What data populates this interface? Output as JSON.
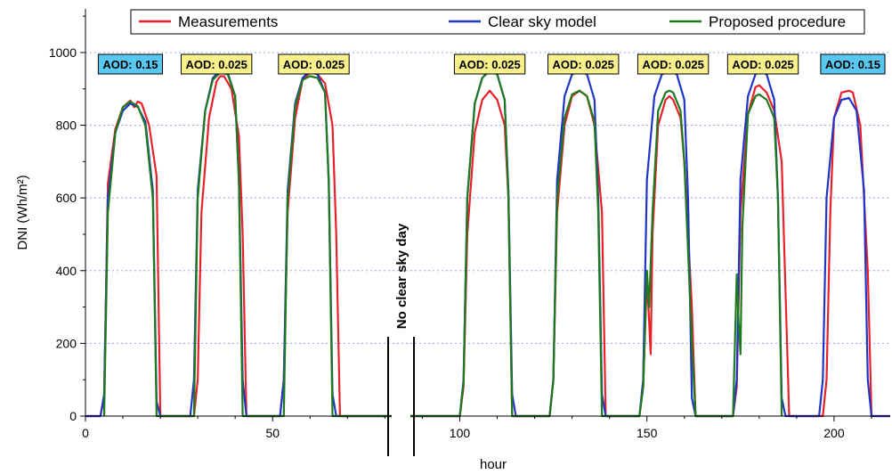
{
  "chart_data": {
    "type": "line",
    "title": "",
    "xlabel": "hour",
    "ylabel": "DNI (Wh/m²)",
    "xlim": [
      0,
      215
    ],
    "ylim": [
      0,
      1120
    ],
    "x_ticks": [
      0,
      50,
      100,
      150,
      200
    ],
    "y_ticks": [
      0,
      200,
      400,
      600,
      800,
      1000
    ],
    "grid": "horizontal dashed",
    "legend_position": "top",
    "break_label": "No clear sky day",
    "series": [
      {
        "name": "Measurements",
        "color": "#e8202a",
        "points": [
          [
            0,
            0
          ],
          [
            4,
            0
          ],
          [
            5,
            50
          ],
          [
            6,
            640
          ],
          [
            8,
            790
          ],
          [
            10,
            850
          ],
          [
            12,
            868
          ],
          [
            13,
            850
          ],
          [
            14,
            865
          ],
          [
            15,
            860
          ],
          [
            17,
            800
          ],
          [
            19,
            660
          ],
          [
            20,
            0
          ],
          [
            29,
            0
          ],
          [
            30,
            100
          ],
          [
            31,
            560
          ],
          [
            33,
            820
          ],
          [
            35,
            920
          ],
          [
            36,
            935
          ],
          [
            37,
            935
          ],
          [
            39,
            900
          ],
          [
            41,
            770
          ],
          [
            42,
            500
          ],
          [
            43,
            0
          ],
          [
            52,
            0
          ],
          [
            53,
            100
          ],
          [
            54,
            560
          ],
          [
            56,
            820
          ],
          [
            58,
            925
          ],
          [
            60,
            945
          ],
          [
            62,
            940
          ],
          [
            64,
            915
          ],
          [
            66,
            800
          ],
          [
            67,
            500
          ],
          [
            68,
            0
          ],
          [
            100,
            0
          ],
          [
            101,
            80
          ],
          [
            102,
            500
          ],
          [
            104,
            780
          ],
          [
            106,
            870
          ],
          [
            108,
            895
          ],
          [
            110,
            870
          ],
          [
            112,
            800
          ],
          [
            113,
            600
          ],
          [
            114,
            0
          ],
          [
            124,
            0
          ],
          [
            125,
            100
          ],
          [
            126,
            560
          ],
          [
            128,
            800
          ],
          [
            130,
            880
          ],
          [
            132,
            895
          ],
          [
            134,
            880
          ],
          [
            136,
            800
          ],
          [
            138,
            560
          ],
          [
            139,
            0
          ],
          [
            148,
            0
          ],
          [
            149,
            80
          ],
          [
            150,
            380
          ],
          [
            150.6,
            260
          ],
          [
            151,
            170
          ],
          [
            151.5,
            500
          ],
          [
            153,
            800
          ],
          [
            155,
            870
          ],
          [
            156,
            880
          ],
          [
            157,
            870
          ],
          [
            159,
            820
          ],
          [
            160,
            700
          ],
          [
            162,
            300
          ],
          [
            163,
            0
          ],
          [
            173,
            0
          ],
          [
            174,
            80
          ],
          [
            175,
            560
          ],
          [
            177,
            830
          ],
          [
            179,
            905
          ],
          [
            180,
            910
          ],
          [
            182,
            890
          ],
          [
            184,
            840
          ],
          [
            186,
            700
          ],
          [
            188,
            0
          ],
          [
            197,
            0
          ],
          [
            198,
            100
          ],
          [
            199,
            560
          ],
          [
            200,
            820
          ],
          [
            202,
            890
          ],
          [
            204,
            895
          ],
          [
            205,
            890
          ],
          [
            207,
            800
          ],
          [
            209,
            400
          ],
          [
            210,
            0
          ],
          [
            215,
            0
          ]
        ]
      },
      {
        "name": "Clear sky model",
        "color": "#1f35c8",
        "points": [
          [
            0,
            0
          ],
          [
            4,
            0
          ],
          [
            5,
            60
          ],
          [
            6,
            600
          ],
          [
            8,
            780
          ],
          [
            10,
            840
          ],
          [
            12,
            860
          ],
          [
            14,
            850
          ],
          [
            16,
            810
          ],
          [
            18,
            620
          ],
          [
            19,
            40
          ],
          [
            20,
            0
          ],
          [
            28,
            0
          ],
          [
            29,
            100
          ],
          [
            30,
            620
          ],
          [
            32,
            840
          ],
          [
            34,
            930
          ],
          [
            36,
            950
          ],
          [
            38,
            945
          ],
          [
            40,
            880
          ],
          [
            41,
            650
          ],
          [
            42,
            100
          ],
          [
            43,
            0
          ],
          [
            52,
            0
          ],
          [
            53,
            100
          ],
          [
            54,
            620
          ],
          [
            56,
            860
          ],
          [
            58,
            930
          ],
          [
            60,
            950
          ],
          [
            62,
            940
          ],
          [
            64,
            890
          ],
          [
            65,
            650
          ],
          [
            66,
            60
          ],
          [
            67,
            0
          ],
          [
            100,
            0
          ],
          [
            101,
            100
          ],
          [
            102,
            600
          ],
          [
            104,
            860
          ],
          [
            106,
            930
          ],
          [
            108,
            950
          ],
          [
            110,
            940
          ],
          [
            112,
            870
          ],
          [
            113,
            620
          ],
          [
            114,
            60
          ],
          [
            115,
            0
          ],
          [
            124,
            0
          ],
          [
            125,
            100
          ],
          [
            126,
            650
          ],
          [
            128,
            880
          ],
          [
            130,
            940
          ],
          [
            132,
            948
          ],
          [
            134,
            940
          ],
          [
            136,
            870
          ],
          [
            137,
            600
          ],
          [
            138,
            60
          ],
          [
            139,
            0
          ],
          [
            148,
            0
          ],
          [
            149,
            100
          ],
          [
            150,
            650
          ],
          [
            152,
            880
          ],
          [
            154,
            940
          ],
          [
            156,
            948
          ],
          [
            158,
            940
          ],
          [
            160,
            870
          ],
          [
            161,
            600
          ],
          [
            162,
            50
          ],
          [
            163,
            0
          ],
          [
            173,
            0
          ],
          [
            174,
            100
          ],
          [
            175,
            650
          ],
          [
            177,
            880
          ],
          [
            179,
            940
          ],
          [
            180,
            950
          ],
          [
            182,
            940
          ],
          [
            184,
            870
          ],
          [
            185,
            600
          ],
          [
            186,
            50
          ],
          [
            187,
            0
          ],
          [
            196,
            0
          ],
          [
            197,
            100
          ],
          [
            198,
            600
          ],
          [
            200,
            820
          ],
          [
            202,
            870
          ],
          [
            204,
            875
          ],
          [
            206,
            840
          ],
          [
            208,
            620
          ],
          [
            209,
            100
          ],
          [
            210,
            0
          ],
          [
            215,
            0
          ]
        ]
      },
      {
        "name": "Proposed procedure",
        "color": "#1f7a1f",
        "points": [
          [
            5,
            0
          ],
          [
            6,
            560
          ],
          [
            8,
            780
          ],
          [
            10,
            850
          ],
          [
            12,
            865
          ],
          [
            14,
            852
          ],
          [
            16,
            800
          ],
          [
            18,
            600
          ],
          [
            19,
            0
          ],
          [
            29,
            0
          ],
          [
            30,
            600
          ],
          [
            32,
            840
          ],
          [
            34,
            925
          ],
          [
            36,
            945
          ],
          [
            38,
            940
          ],
          [
            40,
            880
          ],
          [
            41,
            640
          ],
          [
            42,
            0
          ],
          [
            53,
            0
          ],
          [
            54,
            600
          ],
          [
            56,
            850
          ],
          [
            58,
            925
          ],
          [
            60,
            935
          ],
          [
            62,
            930
          ],
          [
            64,
            890
          ],
          [
            65,
            640
          ],
          [
            66,
            0
          ],
          [
            100,
            0
          ],
          [
            101,
            90
          ],
          [
            102,
            600
          ],
          [
            104,
            860
          ],
          [
            106,
            930
          ],
          [
            108,
            952
          ],
          [
            110,
            940
          ],
          [
            112,
            870
          ],
          [
            113,
            600
          ],
          [
            114,
            0
          ],
          [
            124,
            0
          ],
          [
            125,
            100
          ],
          [
            126,
            600
          ],
          [
            128,
            820
          ],
          [
            130,
            885
          ],
          [
            132,
            895
          ],
          [
            134,
            880
          ],
          [
            136,
            810
          ],
          [
            137,
            560
          ],
          [
            138,
            0
          ],
          [
            148,
            0
          ],
          [
            149,
            80
          ],
          [
            150,
            400
          ],
          [
            150.6,
            300
          ],
          [
            151.5,
            560
          ],
          [
            153,
            840
          ],
          [
            155,
            890
          ],
          [
            156,
            895
          ],
          [
            157,
            890
          ],
          [
            159,
            840
          ],
          [
            160,
            700
          ],
          [
            162,
            200
          ],
          [
            163,
            0
          ],
          [
            173,
            0
          ],
          [
            174,
            390
          ],
          [
            174.5,
            260
          ],
          [
            175,
            170
          ],
          [
            175.5,
            520
          ],
          [
            177,
            830
          ],
          [
            179,
            880
          ],
          [
            180,
            885
          ],
          [
            182,
            870
          ],
          [
            184,
            820
          ],
          [
            185,
            600
          ],
          [
            186,
            0
          ]
        ]
      }
    ],
    "annotations": [
      {
        "text": "AOD: 0.15",
        "x": 12,
        "color": "#58c8f0"
      },
      {
        "text": "AOD: 0.025",
        "x": 35,
        "color": "#f8f08a"
      },
      {
        "text": "AOD: 0.025",
        "x": 61,
        "color": "#f8f08a"
      },
      {
        "text": "AOD: 0.025",
        "x": 108,
        "color": "#f8f08a"
      },
      {
        "text": "AOD: 0.025",
        "x": 133,
        "color": "#f8f08a"
      },
      {
        "text": "AOD: 0.025",
        "x": 157,
        "color": "#f8f08a"
      },
      {
        "text": "AOD: 0.025",
        "x": 181,
        "color": "#f8f08a"
      },
      {
        "text": "AOD: 0.15",
        "x": 205,
        "color": "#58c8f0"
      }
    ]
  }
}
